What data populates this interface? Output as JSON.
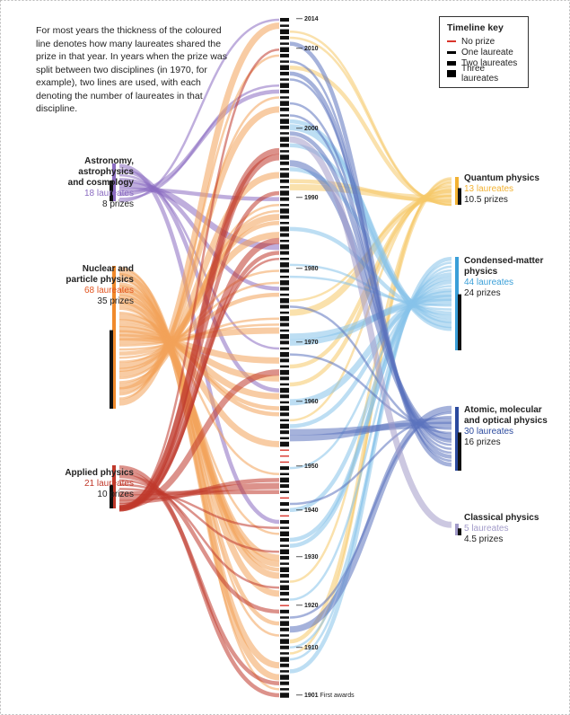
{
  "intro_text": "For most years the thickness of the coloured line denotes how many laureates shared the prize in that year. In years when the prize was split between two disciplines (in 1970, for example), two lines are used, with each denoting the number of laureates in that discipline.",
  "timeline_key": {
    "title": "Timeline key",
    "items": [
      {
        "label": "No prize",
        "color": "#d9342b",
        "laureates": 0
      },
      {
        "label": "One laureate",
        "color": "#111111",
        "laureates": 1
      },
      {
        "label": "Two laureates",
        "color": "#111111",
        "laureates": 2
      },
      {
        "label": "Three laureates",
        "color": "#111111",
        "laureates": 3
      }
    ]
  },
  "year_labels": [
    {
      "year": "2014"
    },
    {
      "year": "2010"
    },
    {
      "year": "2000"
    },
    {
      "year": "1990"
    },
    {
      "year": "1980"
    },
    {
      "year": "1970"
    },
    {
      "year": "1960"
    },
    {
      "year": "1950"
    },
    {
      "year": "1940"
    },
    {
      "year": "1930"
    },
    {
      "year": "1920"
    },
    {
      "year": "1910"
    },
    {
      "year": "1901",
      "note": "First awards"
    }
  ],
  "timeline": {
    "start_year": 1901,
    "end_year": 2014,
    "no_prize_years": [
      1916,
      1931,
      1934,
      1940,
      1941,
      1942
    ]
  },
  "categories_left": [
    {
      "id": "astro",
      "title_lines": [
        "Astronomy,",
        "astrophysics",
        "and cosmology"
      ],
      "laureates": "18 laureates",
      "prizes": "8 prizes",
      "color": "#8b6cc1",
      "prizes_value": 8
    },
    {
      "id": "nuclear",
      "title_lines": [
        "Nuclear and",
        "particle physics"
      ],
      "laureates": "68 laureates",
      "prizes": "35 prizes",
      "color": "#f08a2c",
      "prizes_value": 35
    },
    {
      "id": "applied",
      "title_lines": [
        "Applied physics"
      ],
      "laureates": "21 laureates",
      "prizes": "10 prizes",
      "color": "#c0392b",
      "prizes_value": 10
    }
  ],
  "categories_right": [
    {
      "id": "quantum",
      "title_lines": [
        "Quantum physics"
      ],
      "laureates": "13 laureates",
      "prizes": "10.5 prizes",
      "color": "#f2b233",
      "prizes_value": 10.5
    },
    {
      "id": "condensed",
      "title_lines": [
        "Condensed-matter",
        "physics"
      ],
      "laureates": "44 laureates",
      "prizes": "24 prizes",
      "color": "#3a9fd8",
      "prizes_value": 24
    },
    {
      "id": "amo",
      "title_lines": [
        "Atomic, molecular",
        "and optical physics"
      ],
      "laureates": "30 laureates",
      "prizes": "16 prizes",
      "color": "#2b4a9e",
      "prizes_value": 16
    },
    {
      "id": "classical",
      "title_lines": [
        "Classical physics"
      ],
      "laureates": "5 laureates",
      "prizes": "4.5 prizes",
      "color": "#a29bc9",
      "prizes_value": 4.5
    }
  ]
}
